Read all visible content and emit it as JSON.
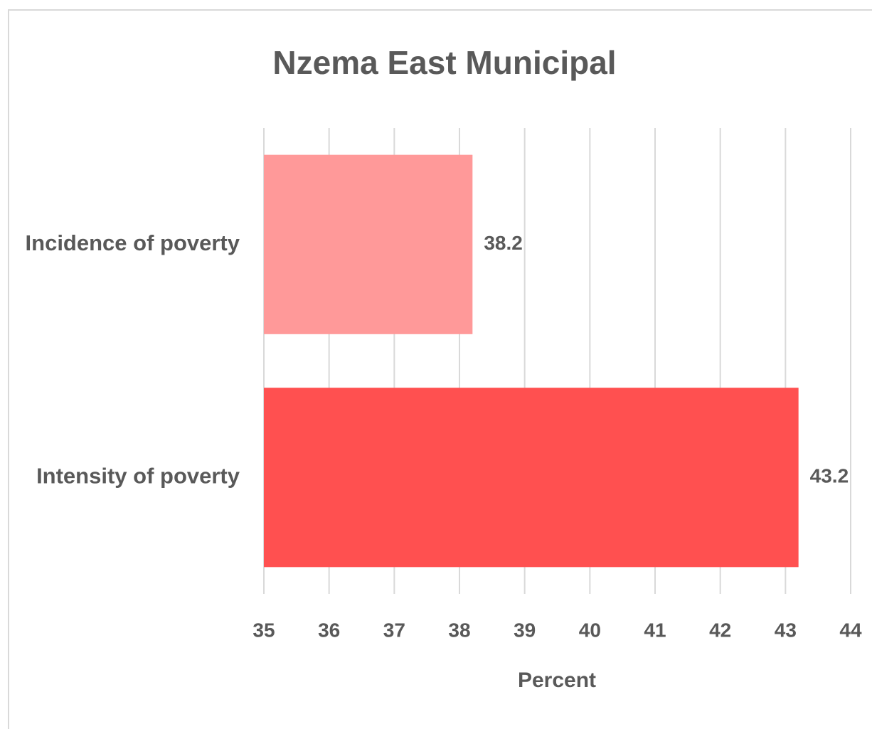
{
  "chart_data": {
    "type": "barh",
    "title": "Nzema East Municipal",
    "categories": [
      "Incidence of poverty",
      "Intensity of poverty"
    ],
    "values": [
      38.2,
      43.2
    ],
    "colors": [
      "#ff9999",
      "#ff5050"
    ],
    "xlabel": "Percent",
    "xlim": [
      35,
      44
    ],
    "xticks": [
      35,
      36,
      37,
      38,
      39,
      40,
      41,
      42,
      43,
      44
    ],
    "grid": true
  }
}
